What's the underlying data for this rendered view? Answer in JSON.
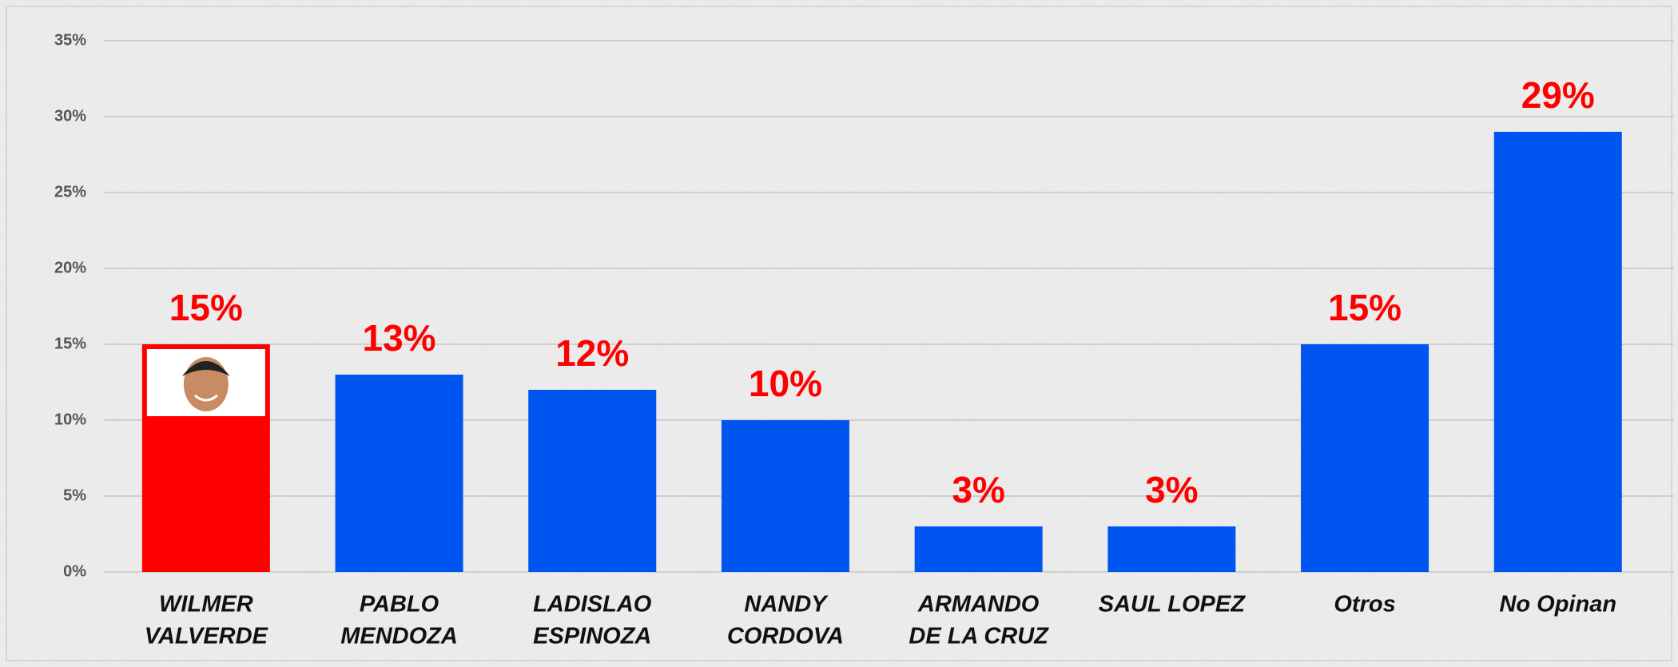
{
  "chart_data": {
    "type": "bar",
    "categories": [
      [
        "WILMER",
        "VALVERDE"
      ],
      [
        "PABLO",
        "MENDOZA"
      ],
      [
        "LADISLAO",
        "ESPINOZA"
      ],
      [
        "NANDY",
        "CORDOVA"
      ],
      [
        "ARMANDO",
        "DE LA CRUZ"
      ],
      [
        "SAUL LOPEZ"
      ],
      [
        "Otros"
      ],
      [
        "No Opinan"
      ]
    ],
    "values": [
      15,
      13,
      12,
      10,
      3,
      3,
      15,
      29
    ],
    "value_labels": [
      "15%",
      "13%",
      "12%",
      "10%",
      "3%",
      "3%",
      "15%",
      "29%"
    ],
    "colors": [
      "#ff0000",
      "#0055f0",
      "#0055f0",
      "#0055f0",
      "#0055f0",
      "#0055f0",
      "#0055f0",
      "#0055f0"
    ],
    "ylim": [
      0,
      35
    ],
    "yticks": [
      {
        "value": 0,
        "label": "0%"
      },
      {
        "value": 5,
        "label": "5%"
      },
      {
        "value": 10,
        "label": "10%"
      },
      {
        "value": 15,
        "label": "15%"
      },
      {
        "value": 20,
        "label": "20%"
      },
      {
        "value": 25,
        "label": "25%"
      },
      {
        "value": 30,
        "label": "30%"
      },
      {
        "value": 35,
        "label": "35%"
      }
    ],
    "grid": true
  }
}
